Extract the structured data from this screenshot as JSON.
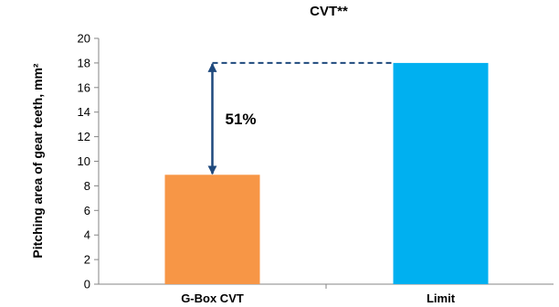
{
  "chart_data": {
    "type": "bar",
    "title": "CVT**",
    "ylabel": "Pitching area of gear teeth, mm²",
    "xlabel": "",
    "categories": [
      "G-Box CVT",
      "Limit"
    ],
    "values": [
      8.9,
      18
    ],
    "ylim": [
      0,
      20
    ],
    "yticks": [
      0,
      2,
      4,
      6,
      8,
      10,
      12,
      14,
      16,
      18,
      20
    ],
    "colors": [
      "#F79646",
      "#00B0F0"
    ],
    "grid": false,
    "legend": "none",
    "annotation": {
      "text": "51%",
      "from_value": 8.9,
      "to_value": 18,
      "arrow_color": "#1F497D"
    }
  }
}
